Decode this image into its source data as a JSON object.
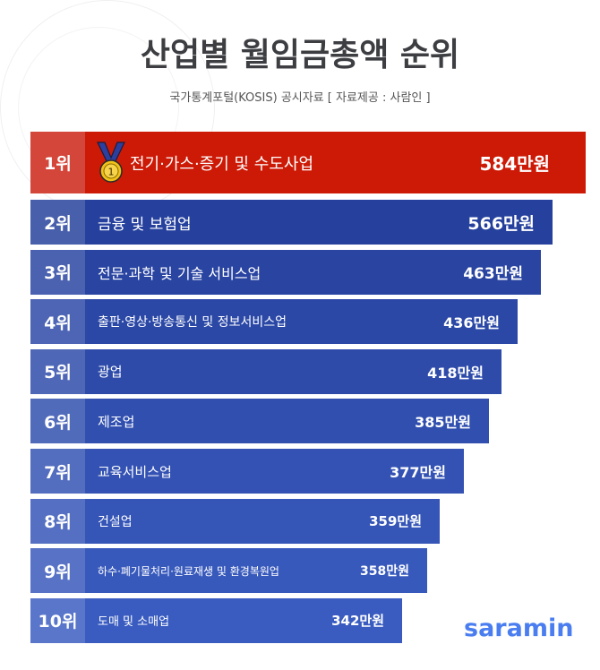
{
  "header": {
    "title": "산업별 월임금총액 순위",
    "subtitle": "국가통계포털(KOSIS) 공시자료 [ 자료제공 : 사람인 ]"
  },
  "logo": "saramin",
  "colors": {
    "first": "#cc1a06",
    "first_rank": "#d4453a",
    "bar_start": "#26419d",
    "bar_end": "#3a5cc0"
  },
  "chart_data": {
    "type": "bar",
    "orientation": "horizontal",
    "unit": "만원",
    "ranks": [
      "1위",
      "2위",
      "3위",
      "4위",
      "5위",
      "6위",
      "7위",
      "8위",
      "9위",
      "10위"
    ],
    "categories": [
      "전기·가스·증기 및 수도사업",
      "금융 및 보험업",
      "전문·과학 및 기술 서비스업",
      "출판·영상·방송통신 및 정보서비스업",
      "광업",
      "제조업",
      "교육서비스업",
      "건설업",
      "하수·폐기물처리·원료재생 및 환경복원업",
      "도매 및 소매업"
    ],
    "values": [
      584,
      566,
      463,
      436,
      418,
      385,
      377,
      359,
      358,
      342
    ],
    "value_labels": [
      "584만원",
      "566만원",
      "463만원",
      "436만원",
      "418만원",
      "385만원",
      "377만원",
      "359만원",
      "358만원",
      "342만원"
    ],
    "highlight": {
      "rank": 1,
      "icon": "gold-medal-icon"
    }
  }
}
